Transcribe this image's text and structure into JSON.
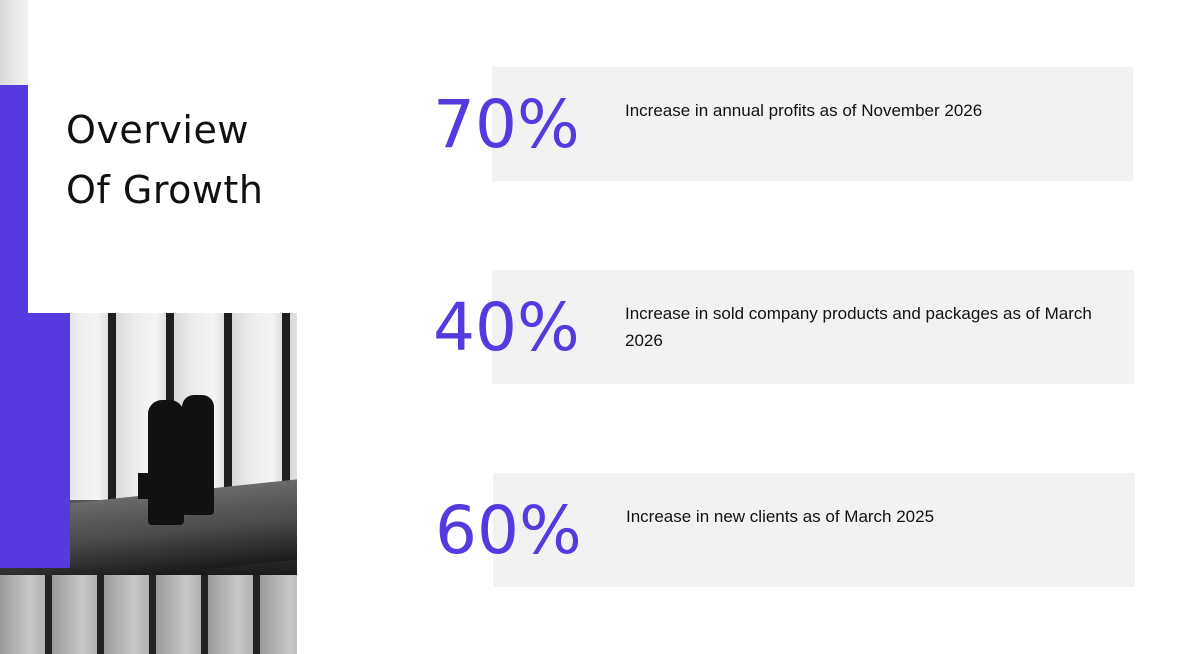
{
  "title": {
    "line1": "Overview",
    "line2": "Of Growth"
  },
  "accent_color": "#563ae0",
  "image": {
    "subject": "business-people-silhouette-photo"
  },
  "stats": [
    {
      "value": "70%",
      "description": "Increase in annual profits as of November 2026"
    },
    {
      "value": "40%",
      "description": "Increase in sold company products and packages as of March 2026"
    },
    {
      "value": "60%",
      "description": "Increase in new clients as of March 2025"
    }
  ]
}
